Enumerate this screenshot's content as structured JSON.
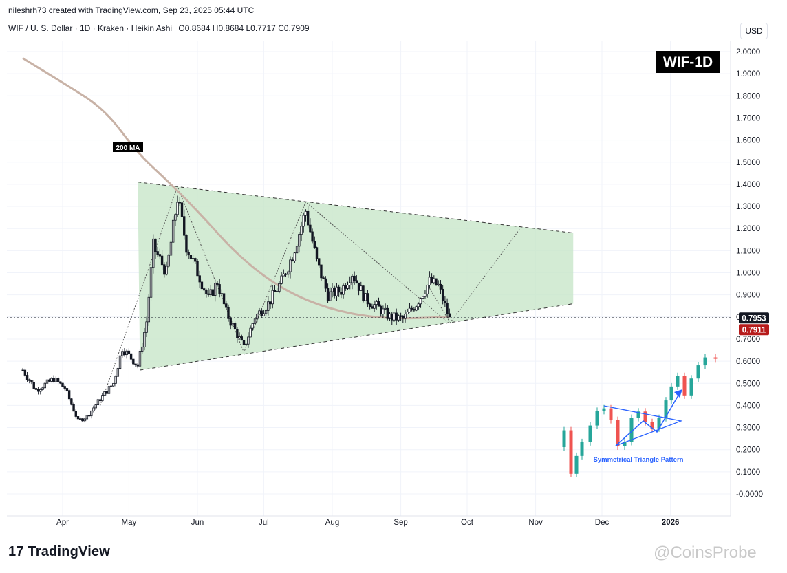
{
  "header": {
    "author_line": "nileshrh73 created with TradingView.com, Sep 23, 2025 05:44 UTC",
    "symbol_line": "WIF / U. S. Dollar · 1D · Kraken · Heikin Ashi",
    "ohlc": "O0.8684 H0.8684 L0.7717 C0.7909",
    "currency_button": "USD"
  },
  "badge": "WIF-1D",
  "ma_label": "200 MA",
  "inset_label": "Symmetrical Triangle Pattern",
  "price_tags": {
    "last": "0.7953",
    "close": "0.7911"
  },
  "brand": "TradingView",
  "watermark": "@CoinsProbe",
  "colors": {
    "up": "#131722",
    "down": "#131722",
    "triangle_fill": "#c8e6c9",
    "ma": "#c8b2a6",
    "inset_up": "#26a69a",
    "inset_down": "#ef5350",
    "arrow": "#2962ff"
  },
  "chart_data": {
    "type": "candlestick",
    "style": "Heikin Ashi",
    "symbol": "WIF / U. S. Dollar",
    "timeframe": "1D",
    "exchange": "Kraken",
    "y_axis": {
      "range": [
        -0.05,
        2.05
      ],
      "ticks": [
        "2.0000",
        "1.9000",
        "1.8000",
        "1.7000",
        "1.6000",
        "1.5000",
        "1.4000",
        "1.3000",
        "1.2000",
        "1.1000",
        "1.0000",
        "0.9000",
        "0.8000",
        "0.7000",
        "0.6000",
        "0.5000",
        "0.4000",
        "0.3000",
        "0.2000",
        "0.1000",
        "-0.0000"
      ]
    },
    "x_axis": {
      "ticks": [
        "Apr",
        "May",
        "Jun",
        "Jul",
        "Aug",
        "Sep",
        "Oct",
        "Nov",
        "Dec",
        "2026"
      ]
    },
    "price_path": [
      [
        "2025-03-14",
        0.56
      ],
      [
        "2025-03-20",
        0.47
      ],
      [
        "2025-03-28",
        0.52
      ],
      [
        "2025-04-02",
        0.48
      ],
      [
        "2025-04-08",
        0.33
      ],
      [
        "2025-04-12",
        0.35
      ],
      [
        "2025-04-18",
        0.43
      ],
      [
        "2025-04-24",
        0.5
      ],
      [
        "2025-04-28",
        0.66
      ],
      [
        "2025-05-05",
        0.58
      ],
      [
        "2025-05-09",
        0.78
      ],
      [
        "2025-05-12",
        1.12
      ],
      [
        "2025-05-18",
        1.0
      ],
      [
        "2025-05-23",
        1.34
      ],
      [
        "2025-05-27",
        1.12
      ],
      [
        "2025-06-02",
        0.98
      ],
      [
        "2025-06-06",
        0.88
      ],
      [
        "2025-06-10",
        0.96
      ],
      [
        "2025-06-14",
        0.82
      ],
      [
        "2025-06-20",
        0.7
      ],
      [
        "2025-06-22",
        0.66
      ],
      [
        "2025-06-27",
        0.8
      ],
      [
        "2025-07-03",
        0.86
      ],
      [
        "2025-07-09",
        0.96
      ],
      [
        "2025-07-14",
        1.08
      ],
      [
        "2025-07-20",
        1.28
      ],
      [
        "2025-07-25",
        1.05
      ],
      [
        "2025-07-30",
        0.9
      ],
      [
        "2025-08-05",
        0.92
      ],
      [
        "2025-08-10",
        1.0
      ],
      [
        "2025-08-16",
        0.88
      ],
      [
        "2025-08-22",
        0.84
      ],
      [
        "2025-08-27",
        0.8
      ],
      [
        "2025-09-02",
        0.79
      ],
      [
        "2025-09-08",
        0.86
      ],
      [
        "2025-09-14",
        0.96
      ],
      [
        "2025-09-18",
        0.94
      ],
      [
        "2025-09-23",
        0.79
      ]
    ],
    "ma200_path": [
      [
        "2025-03-14",
        1.97
      ],
      [
        "2025-04-01",
        1.86
      ],
      [
        "2025-04-20",
        1.74
      ],
      [
        "2025-05-05",
        1.54
      ],
      [
        "2025-05-18",
        1.42
      ],
      [
        "2025-06-01",
        1.28
      ],
      [
        "2025-06-20",
        1.07
      ],
      [
        "2025-07-10",
        0.92
      ],
      [
        "2025-08-01",
        0.83
      ],
      [
        "2025-08-25",
        0.79
      ],
      [
        "2025-09-23",
        0.8
      ]
    ],
    "triangle": {
      "apex_upper_start": [
        "2025-05-05",
        1.41
      ],
      "apex_upper_end": [
        "2025-11-18",
        1.18
      ],
      "apex_lower_start": [
        "2025-05-06",
        0.56
      ],
      "apex_lower_end": [
        "2025-11-18",
        0.86
      ]
    },
    "horizontal_line": 0.7953,
    "last_price": 0.7953,
    "close_price": 0.7911,
    "annotations": [
      "200 MA",
      "WIF-1D",
      "Symmetrical Triangle Pattern"
    ]
  }
}
